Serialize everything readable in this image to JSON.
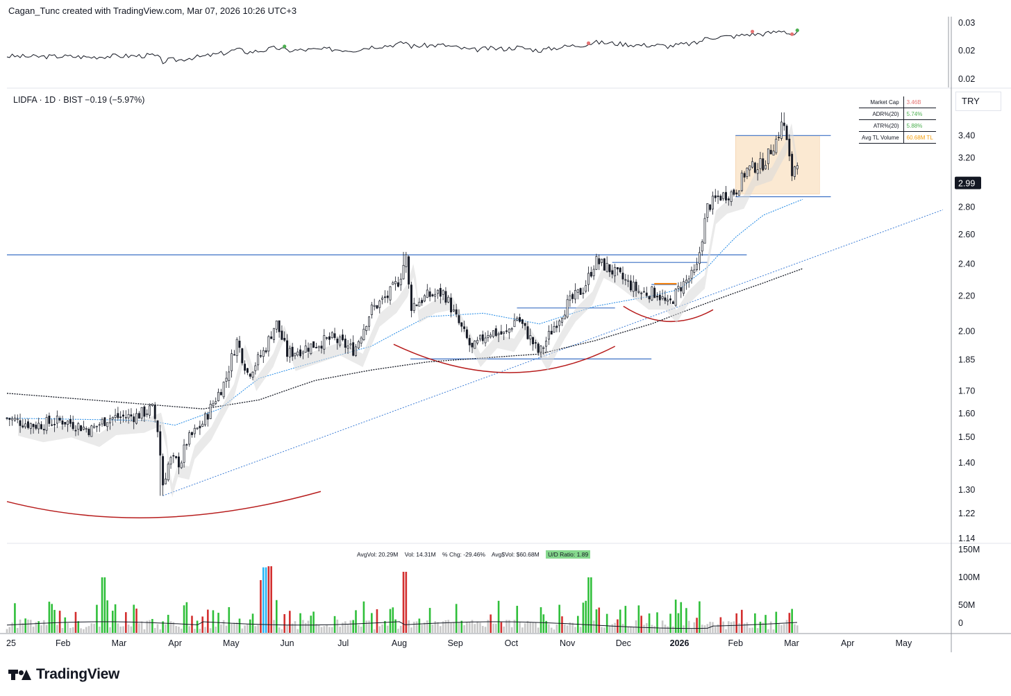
{
  "header": {
    "credit": "Cagan_Tunc created with TradingView.com, Mar 07, 2026 10:26 UTC+3"
  },
  "symbol": {
    "line": "LIDFA · 1D · BIST  −0.19 (−5.97%)"
  },
  "currency": "TRY",
  "last_price": "2.99",
  "stats_table": [
    {
      "label": "Market Cap",
      "value": "3.46B",
      "color": "#e57373"
    },
    {
      "label": "ADR%(20)",
      "value": "5.74%",
      "color": "#4caf50"
    },
    {
      "label": "ATR%(20)",
      "value": "5.88%",
      "color": "#4caf50"
    },
    {
      "label": "Avg TL Volume",
      "value": "60.68M TL",
      "color": "#f59e0b"
    }
  ],
  "volume_info": {
    "avg_vol": "AvgVol: 20.29M",
    "vol": "Vol: 14.31M",
    "chg": "% Chg: -29.46%",
    "avg_dollar_vol": "Avg$Vol: $60.68M",
    "ud_ratio": "U/D Ratio: 1.89"
  },
  "brand": "TradingView",
  "colors": {
    "up": "#131722",
    "down": "#131722",
    "vol_up": "#2fbf3a",
    "vol_down": "#d32f2f",
    "vol_neutral": "#c8c8c8",
    "ma_blue": "#1e88e5",
    "ma_black": "#131722",
    "line_blue": "#3a6fc4",
    "arc_red": "#b71c1c",
    "box_fill": "#fbe9d2"
  },
  "chart_data": {
    "type": "candlestick",
    "symbol": "LIDFA",
    "interval": "1D",
    "exchange": "BIST",
    "y_scale": "log",
    "price_axis_labels": [
      "3.40",
      "3.20",
      "2.80",
      "2.60",
      "2.40",
      "2.20",
      "2.00",
      "1.85",
      "1.70",
      "1.60",
      "1.50",
      "1.40",
      "1.30",
      "1.22",
      "1.14"
    ],
    "price_axis_values": [
      3.4,
      3.2,
      2.8,
      2.6,
      2.4,
      2.2,
      2.0,
      1.85,
      1.7,
      1.6,
      1.5,
      1.4,
      1.3,
      1.22,
      1.14
    ],
    "price_range": [
      1.14,
      3.62
    ],
    "time_axis_labels": [
      "25",
      "Feb",
      "Mar",
      "Apr",
      "May",
      "Jun",
      "Jul",
      "Aug",
      "Sep",
      "Oct",
      "Nov",
      "Dec",
      "2026",
      "Feb",
      "Mar",
      "Apr",
      "May"
    ],
    "time_axis_months": [
      0,
      1,
      2,
      3,
      4,
      5,
      6,
      7,
      8,
      9,
      10,
      11,
      12,
      13,
      14,
      15,
      16
    ],
    "month_range": [
      0,
      16.85
    ],
    "price_path": [
      {
        "m": 0.0,
        "p": 1.58
      },
      {
        "m": 0.5,
        "p": 1.55
      },
      {
        "m": 1.0,
        "p": 1.57
      },
      {
        "m": 1.5,
        "p": 1.53
      },
      {
        "m": 1.8,
        "p": 1.58
      },
      {
        "m": 2.3,
        "p": 1.59
      },
      {
        "m": 2.6,
        "p": 1.62
      },
      {
        "m": 2.7,
        "p": 1.52
      },
      {
        "m": 2.78,
        "p": 1.32
      },
      {
        "m": 2.9,
        "p": 1.41
      },
      {
        "m": 3.1,
        "p": 1.4
      },
      {
        "m": 3.2,
        "p": 1.48
      },
      {
        "m": 3.5,
        "p": 1.56
      },
      {
        "m": 3.9,
        "p": 1.75
      },
      {
        "m": 4.1,
        "p": 1.95
      },
      {
        "m": 4.3,
        "p": 1.78
      },
      {
        "m": 4.6,
        "p": 1.9
      },
      {
        "m": 4.8,
        "p": 2.05
      },
      {
        "m": 5.0,
        "p": 1.88
      },
      {
        "m": 5.4,
        "p": 1.92
      },
      {
        "m": 5.8,
        "p": 1.96
      },
      {
        "m": 6.2,
        "p": 1.9
      },
      {
        "m": 6.5,
        "p": 2.12
      },
      {
        "m": 6.8,
        "p": 2.2
      },
      {
        "m": 7.0,
        "p": 2.3
      },
      {
        "m": 7.12,
        "p": 2.45
      },
      {
        "m": 7.2,
        "p": 2.14
      },
      {
        "m": 7.5,
        "p": 2.2
      },
      {
        "m": 7.8,
        "p": 2.22
      },
      {
        "m": 8.0,
        "p": 2.08
      },
      {
        "m": 8.3,
        "p": 1.9
      },
      {
        "m": 8.6,
        "p": 2.0
      },
      {
        "m": 8.9,
        "p": 1.98
      },
      {
        "m": 9.1,
        "p": 2.08
      },
      {
        "m": 9.3,
        "p": 1.98
      },
      {
        "m": 9.5,
        "p": 1.88
      },
      {
        "m": 9.8,
        "p": 2.05
      },
      {
        "m": 10.0,
        "p": 2.15
      },
      {
        "m": 10.3,
        "p": 2.25
      },
      {
        "m": 10.5,
        "p": 2.42
      },
      {
        "m": 10.7,
        "p": 2.38
      },
      {
        "m": 11.0,
        "p": 2.3
      },
      {
        "m": 11.3,
        "p": 2.22
      },
      {
        "m": 11.6,
        "p": 2.22
      },
      {
        "m": 11.8,
        "p": 2.14
      },
      {
        "m": 12.0,
        "p": 2.25
      },
      {
        "m": 12.3,
        "p": 2.35
      },
      {
        "m": 12.5,
        "p": 2.8
      },
      {
        "m": 12.7,
        "p": 2.88
      },
      {
        "m": 13.0,
        "p": 2.92
      },
      {
        "m": 13.2,
        "p": 3.1
      },
      {
        "m": 13.5,
        "p": 3.15
      },
      {
        "m": 13.75,
        "p": 3.38
      },
      {
        "m": 13.85,
        "p": 3.55
      },
      {
        "m": 14.0,
        "p": 3.05
      },
      {
        "m": 14.1,
        "p": 3.2
      },
      {
        "m": 14.15,
        "p": 2.99
      }
    ],
    "ma_short_path": [
      {
        "m": 0.0,
        "p": 1.58
      },
      {
        "m": 2.5,
        "p": 1.57
      },
      {
        "m": 3.0,
        "p": 1.55
      },
      {
        "m": 3.8,
        "p": 1.62
      },
      {
        "m": 4.5,
        "p": 1.76
      },
      {
        "m": 5.5,
        "p": 1.84
      },
      {
        "m": 6.5,
        "p": 1.92
      },
      {
        "m": 7.5,
        "p": 2.08
      },
      {
        "m": 8.5,
        "p": 2.1
      },
      {
        "m": 9.5,
        "p": 2.04
      },
      {
        "m": 10.5,
        "p": 2.14
      },
      {
        "m": 11.5,
        "p": 2.2
      },
      {
        "m": 12.0,
        "p": 2.24
      },
      {
        "m": 12.5,
        "p": 2.38
      },
      {
        "m": 13.0,
        "p": 2.58
      },
      {
        "m": 13.5,
        "p": 2.74
      },
      {
        "m": 14.2,
        "p": 2.86
      }
    ],
    "ma_long_path": [
      {
        "m": 0.0,
        "p": 1.69
      },
      {
        "m": 2.5,
        "p": 1.64
      },
      {
        "m": 3.5,
        "p": 1.62
      },
      {
        "m": 4.5,
        "p": 1.66
      },
      {
        "m": 5.5,
        "p": 1.75
      },
      {
        "m": 6.5,
        "p": 1.8
      },
      {
        "m": 7.5,
        "p": 1.84
      },
      {
        "m": 8.5,
        "p": 1.86
      },
      {
        "m": 9.5,
        "p": 1.88
      },
      {
        "m": 10.5,
        "p": 1.95
      },
      {
        "m": 11.5,
        "p": 2.04
      },
      {
        "m": 12.5,
        "p": 2.16
      },
      {
        "m": 13.5,
        "p": 2.28
      },
      {
        "m": 14.2,
        "p": 2.37
      }
    ],
    "horizontal_levels": [
      {
        "price": 2.46,
        "from_m": 0.0,
        "to_m": 13.2
      },
      {
        "price": 2.41,
        "from_m": 10.8,
        "to_m": 12.5
      },
      {
        "price": 2.27,
        "from_m": 11.5,
        "to_m": 11.95
      },
      {
        "price": 2.13,
        "from_m": 9.1,
        "to_m": 10.85
      },
      {
        "price": 1.855,
        "from_m": 7.2,
        "to_m": 11.5
      },
      {
        "price": 3.4,
        "from_m": 13.0,
        "to_m": 14.7
      },
      {
        "price": 2.88,
        "from_m": 13.0,
        "to_m": 14.7
      }
    ],
    "consolidation_box": {
      "from_m": 13.0,
      "to_m": 14.5,
      "price_low": 2.9,
      "price_high": 3.4
    },
    "trendline": {
      "from": {
        "m": 2.78,
        "p": 1.28
      },
      "to": {
        "m": 16.7,
        "p": 2.78
      }
    },
    "volume": {
      "axis_labels": [
        "150M",
        "100M",
        "50M",
        "0"
      ],
      "axis_values": [
        150,
        100,
        50,
        0
      ],
      "max": 160
    },
    "rs_panel": {
      "axis_labels": [
        "0.03",
        "0.02",
        "0.02"
      ]
    }
  }
}
